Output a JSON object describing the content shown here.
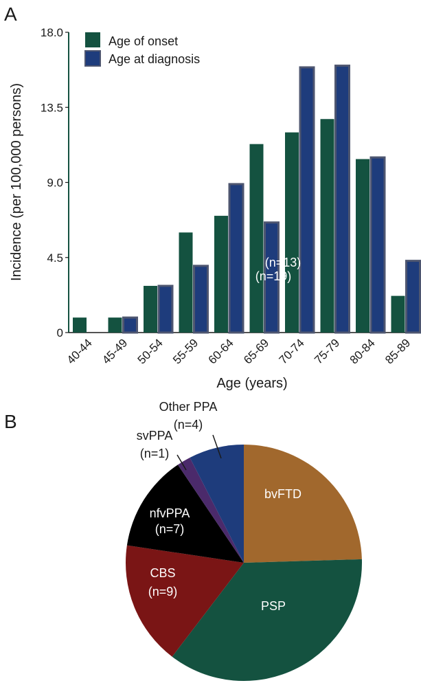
{
  "panels": {
    "a": "A",
    "b": "B"
  },
  "colors": {
    "onset": "#145240",
    "diagnosis": "#1e3c7c",
    "diagnosis_edge": "#4e5670",
    "axis": "#1a1a1a",
    "axis_accent": "#145240"
  },
  "chart_data": [
    {
      "type": "bar",
      "categories": [
        "40-44",
        "45-49",
        "50-54",
        "55-59",
        "60-64",
        "65-69",
        "70-74",
        "75-79",
        "80-84",
        "85-89"
      ],
      "series": [
        {
          "name": "Age of onset",
          "values": [
            0.9,
            0.9,
            2.8,
            6.0,
            7.0,
            11.3,
            12.0,
            12.8,
            10.4,
            2.2
          ]
        },
        {
          "name": "Age at diagnosis",
          "values": [
            0.0,
            0.9,
            2.8,
            4.0,
            8.9,
            6.6,
            15.9,
            16.0,
            10.5,
            4.3
          ]
        }
      ],
      "title": "",
      "xlabel": "Age (years)",
      "ylabel": "Incidence (per 100,000 persons)",
      "ylim": [
        0,
        18
      ],
      "yticks": [
        "0",
        "4.5",
        "9.0",
        "13.5",
        "18.0"
      ],
      "ytick_values": [
        0,
        4.5,
        9,
        13.5,
        18
      ],
      "grid": false,
      "legend": "top-left"
    },
    {
      "type": "pie",
      "slices": [
        {
          "label": "bvFTD",
          "count": "(n=13)",
          "value": 13,
          "color": "#a1682d",
          "text_color": "#ffffff"
        },
        {
          "label": "PSP",
          "count": "(n=19)",
          "value": 19,
          "color": "#145240",
          "text_color": "#ffffff"
        },
        {
          "label": "CBS",
          "count": "(n=9)",
          "value": 9,
          "color": "#7a1515",
          "text_color": "#ffffff"
        },
        {
          "label": "nfvPPA",
          "count": "(n=7)",
          "value": 7,
          "color": "#000000",
          "text_color": "#ffffff"
        },
        {
          "label": "svPPA",
          "count": "(n=1)",
          "value": 1,
          "color": "#4b2a6b",
          "text_color": "#1a1a1a"
        },
        {
          "label": "Other PPA",
          "count": "(n=4)",
          "value": 4,
          "color": "#1e3c7c",
          "text_color": "#1a1a1a"
        }
      ]
    }
  ]
}
